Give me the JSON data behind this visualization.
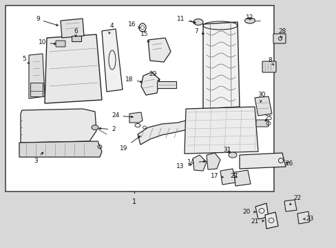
{
  "bg_color": "#d8d8d8",
  "box_color": "#ffffff",
  "box_border": "#555555",
  "line_color": "#222222",
  "text_color": "#111111",
  "fig_width": 4.89,
  "fig_height": 3.6,
  "dpi": 100
}
